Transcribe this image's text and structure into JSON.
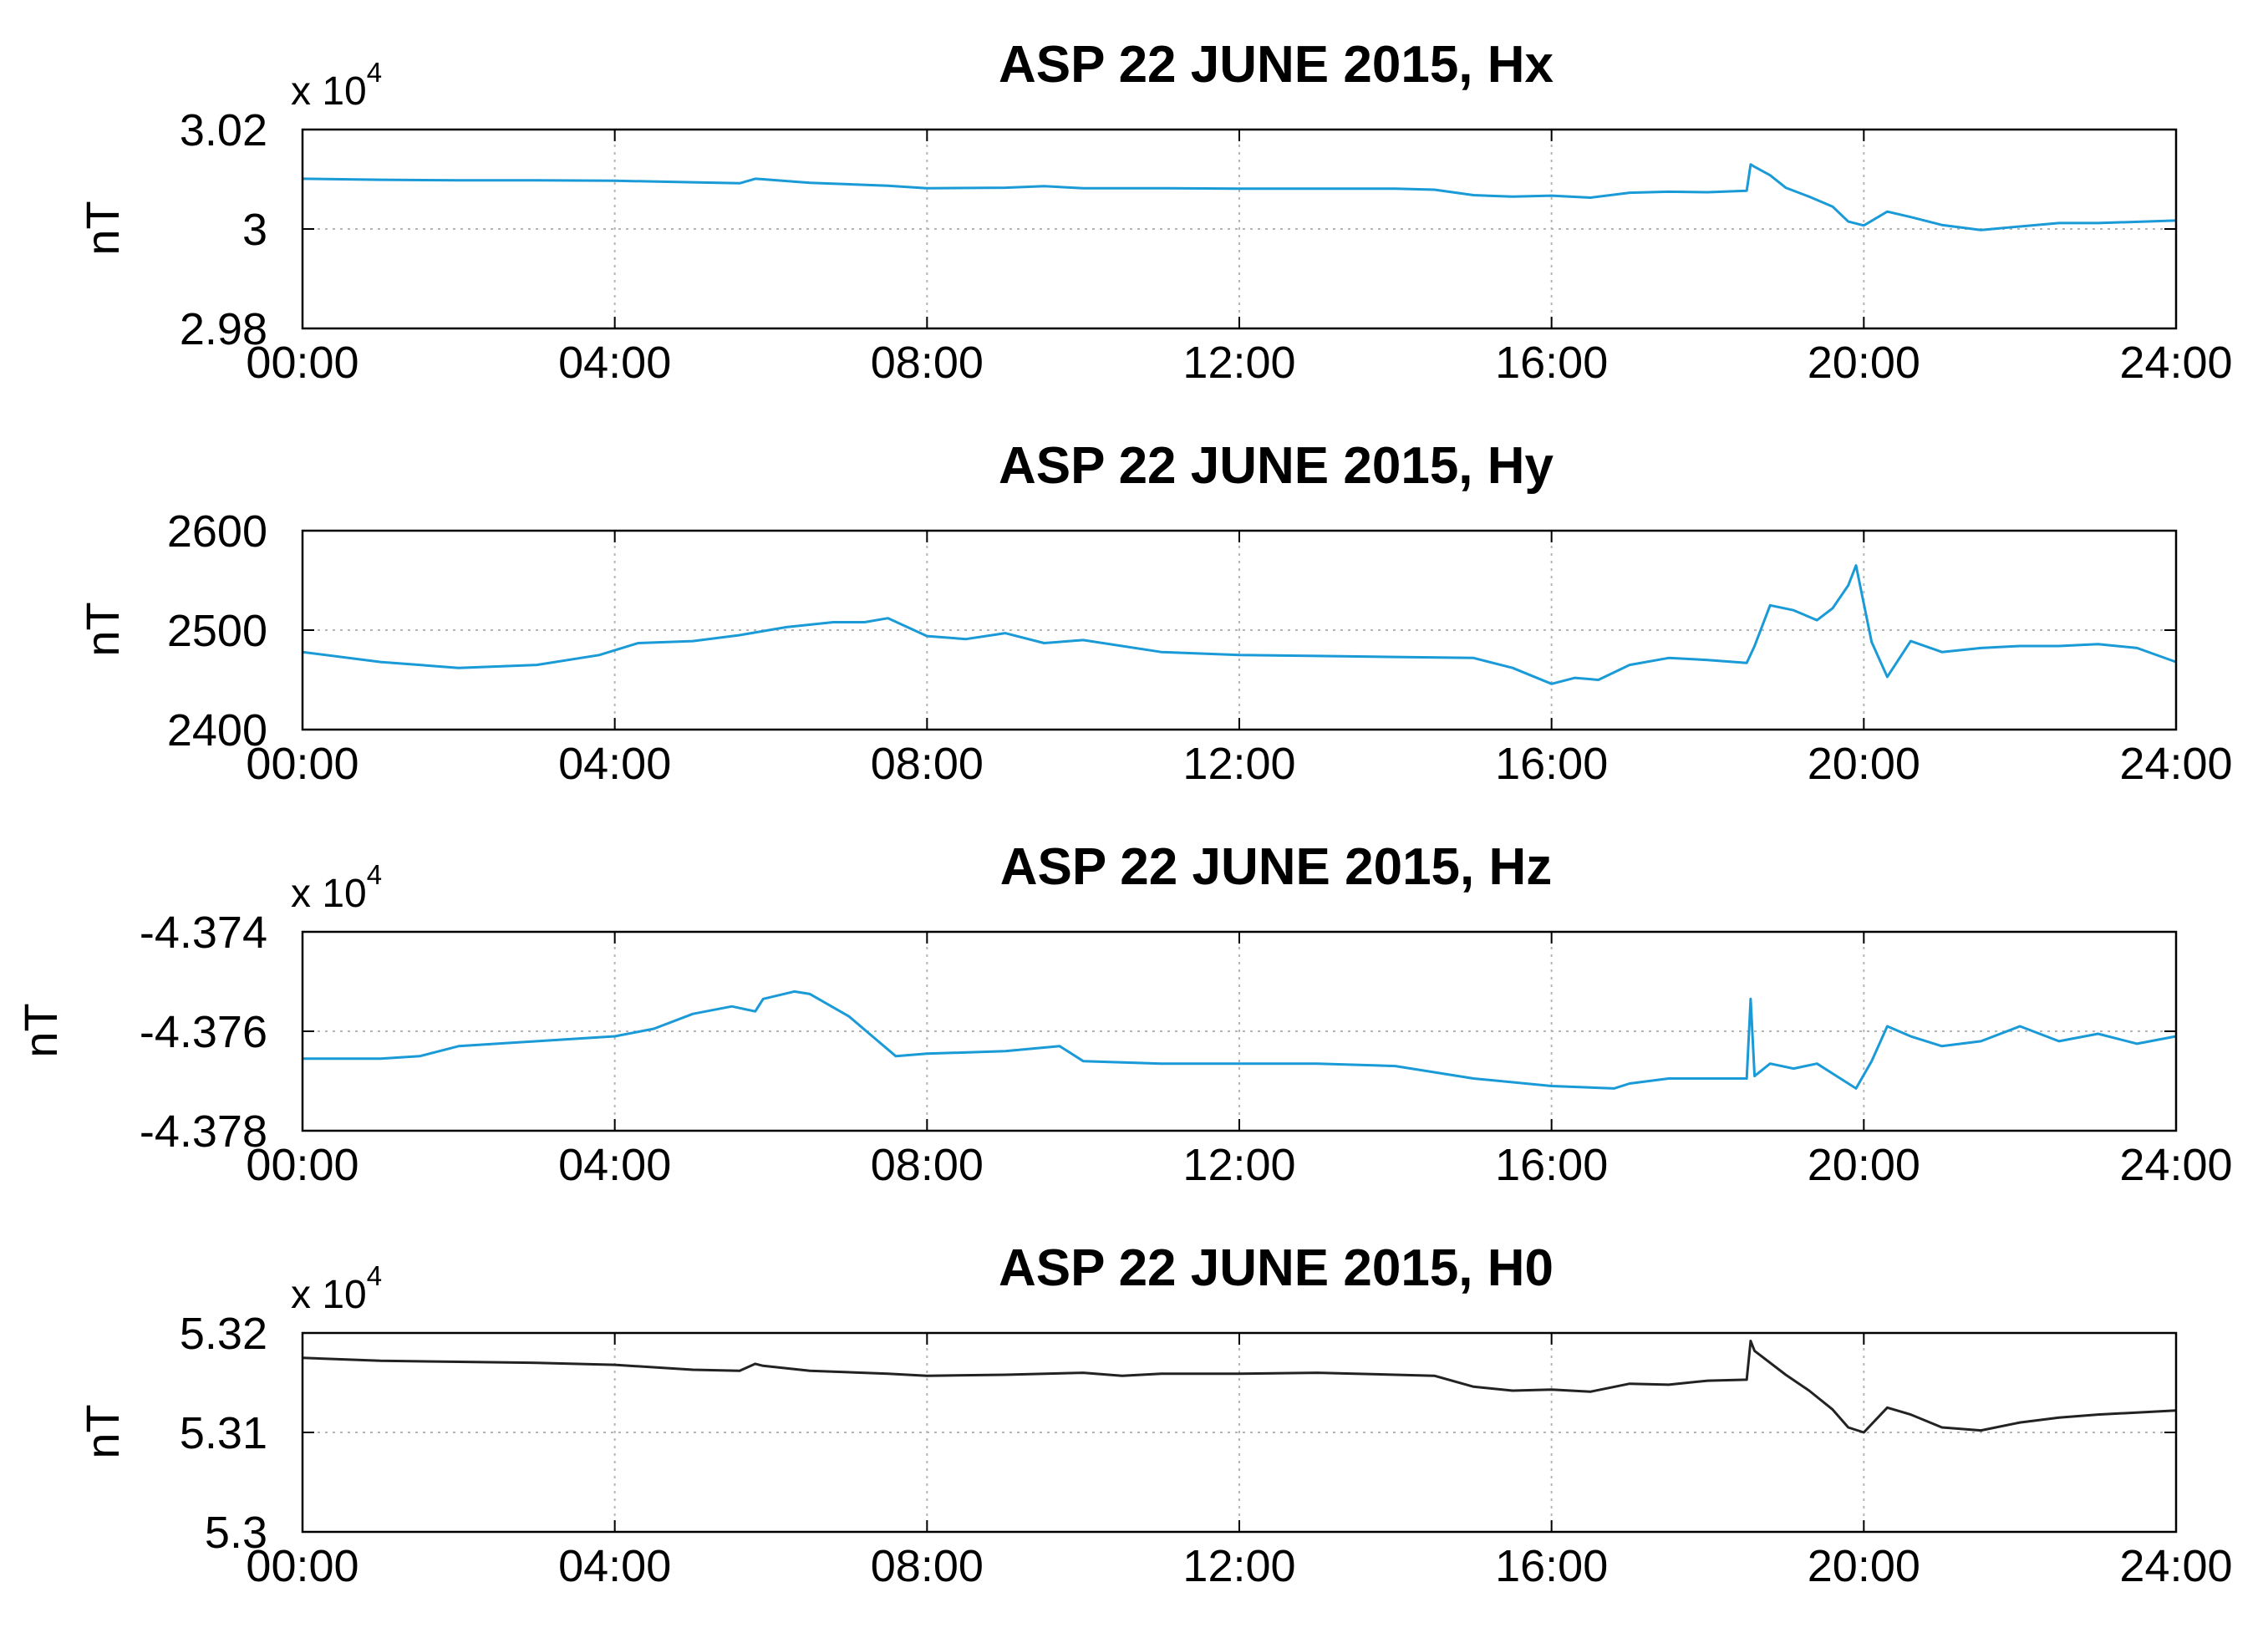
{
  "chart_data": [
    {
      "type": "line",
      "title": "ASP 22 JUNE 2015, Hx",
      "ylabel": "nT",
      "xlabel": "",
      "y_multiplier": "x 10",
      "y_multiplier_exponent": "4",
      "xlim": [
        0,
        24
      ],
      "x_tick_labels": [
        "00:00",
        "04:00",
        "08:00",
        "12:00",
        "16:00",
        "20:00",
        "24:00"
      ],
      "ylim": [
        2.98,
        3.02
      ],
      "y_ticks": [
        2.98,
        3.0,
        3.02
      ],
      "y_tick_labels": [
        "2.98",
        "3",
        "3.02"
      ],
      "grid": true,
      "color": "#1a9ad6",
      "series": [
        {
          "x": [
            0,
            1,
            2,
            3,
            4,
            5,
            5.6,
            5.8,
            5.9,
            6.5,
            7.5,
            8,
            9,
            9.5,
            10,
            11,
            12,
            13,
            14,
            14.5,
            15,
            15.5,
            16,
            16.5,
            17,
            17.5,
            18,
            18.5,
            18.55,
            18.6,
            18.8,
            19,
            19.3,
            19.6,
            19.8,
            20,
            20.3,
            20.6,
            21,
            21.5,
            22,
            22.5,
            23,
            24
          ],
          "y": [
            3.0101,
            3.0099,
            3.0098,
            3.0098,
            3.0097,
            3.0094,
            3.0092,
            3.0101,
            3.01,
            3.0093,
            3.0087,
            3.0082,
            3.0083,
            3.0086,
            3.0082,
            3.0082,
            3.0081,
            3.0081,
            3.0081,
            3.0079,
            3.0068,
            3.0065,
            3.0067,
            3.0063,
            3.0073,
            3.0075,
            3.0074,
            3.0077,
            3.013,
            3.0125,
            3.0108,
            3.0083,
            3.0065,
            3.0045,
            3.0015,
            3.0007,
            3.0035,
            3.0024,
            3.0008,
            2.9998,
            3.0005,
            3.0012,
            3.0012,
            3.0017
          ]
        }
      ]
    },
    {
      "type": "line",
      "title": "ASP 22 JUNE 2015, Hy",
      "ylabel": "nT",
      "xlabel": "",
      "xlim": [
        0,
        24
      ],
      "x_tick_labels": [
        "00:00",
        "04:00",
        "08:00",
        "12:00",
        "16:00",
        "20:00",
        "24:00"
      ],
      "ylim": [
        2400,
        2600
      ],
      "y_ticks": [
        2400,
        2500,
        2600
      ],
      "y_tick_labels": [
        "2400",
        "2500",
        "2600"
      ],
      "grid": true,
      "color": "#1a9ad6",
      "series": [
        {
          "x": [
            0,
            1,
            2,
            3,
            3.8,
            4.3,
            5,
            5.6,
            6.2,
            6.8,
            7.2,
            7.5,
            8,
            8.5,
            9,
            9.5,
            10,
            11,
            12,
            13,
            14,
            15,
            15.5,
            16,
            16.3,
            16.6,
            17,
            17.5,
            18,
            18.5,
            18.6,
            18.8,
            19.1,
            19.4,
            19.6,
            19.8,
            19.9,
            20.1,
            20.3,
            20.6,
            21,
            21.5,
            22,
            22.5,
            23,
            23.5,
            24
          ],
          "y": [
            2478,
            2468,
            2462,
            2465,
            2475,
            2487,
            2489,
            2495,
            2503,
            2508,
            2508,
            2512,
            2494,
            2491,
            2497,
            2487,
            2490,
            2478,
            2475,
            2474,
            2473,
            2472,
            2462,
            2446,
            2452,
            2450,
            2465,
            2472,
            2470,
            2467,
            2484,
            2525,
            2520,
            2510,
            2522,
            2545,
            2565,
            2488,
            2453,
            2489,
            2478,
            2482,
            2484,
            2484,
            2486,
            2482,
            2468
          ]
        }
      ]
    },
    {
      "type": "line",
      "title": "ASP 22 JUNE 2015, Hz",
      "ylabel": "nT",
      "xlabel": "",
      "y_multiplier": "x 10",
      "y_multiplier_exponent": "4",
      "xlim": [
        0,
        24
      ],
      "x_tick_labels": [
        "00:00",
        "04:00",
        "08:00",
        "12:00",
        "16:00",
        "20:00",
        "24:00"
      ],
      "ylim": [
        -4.378,
        -4.374
      ],
      "y_ticks": [
        -4.378,
        -4.376,
        -4.374
      ],
      "y_tick_labels": [
        "-4.378",
        "-4.376",
        "-4.374"
      ],
      "grid": true,
      "color": "#1a9ad6",
      "series": [
        {
          "x": [
            0,
            1,
            1.5,
            2,
            3,
            4,
            4.5,
            5,
            5.5,
            5.8,
            5.9,
            6.3,
            6.5,
            7,
            7.3,
            7.6,
            8,
            9,
            9.7,
            10,
            11,
            12,
            13,
            14,
            15,
            16,
            16.8,
            17,
            17.5,
            18,
            18.5,
            18.55,
            18.6,
            18.8,
            19.1,
            19.4,
            19.7,
            19.9,
            20.1,
            20.3,
            20.6,
            21,
            21.5,
            22,
            22.5,
            23,
            23.5,
            24
          ],
          "y": [
            -4.37655,
            -4.37655,
            -4.3765,
            -4.3763,
            -4.3762,
            -4.3761,
            -4.37595,
            -4.37565,
            -4.3755,
            -4.3756,
            -4.37535,
            -4.3752,
            -4.37525,
            -4.3757,
            -4.3761,
            -4.3765,
            -4.37645,
            -4.3764,
            -4.3763,
            -4.3766,
            -4.37665,
            -4.37665,
            -4.37665,
            -4.3767,
            -4.37695,
            -4.3771,
            -4.37715,
            -4.37705,
            -4.37695,
            -4.37695,
            -4.37695,
            -4.37535,
            -4.3769,
            -4.37665,
            -4.37675,
            -4.37665,
            -4.37695,
            -4.37715,
            -4.3766,
            -4.3759,
            -4.3761,
            -4.3763,
            -4.3762,
            -4.3759,
            -4.3762,
            -4.37605,
            -4.37625,
            -4.3761
          ]
        }
      ]
    },
    {
      "type": "line",
      "title": "ASP 22 JUNE 2015, H0",
      "ylabel": "nT",
      "xlabel": "",
      "y_multiplier": "x 10",
      "y_multiplier_exponent": "4",
      "xlim": [
        0,
        24
      ],
      "x_tick_labels": [
        "00:00",
        "04:00",
        "08:00",
        "12:00",
        "16:00",
        "20:00",
        "24:00"
      ],
      "ylim": [
        5.3,
        5.32
      ],
      "y_ticks": [
        5.3,
        5.31,
        5.32
      ],
      "y_tick_labels": [
        "5.3",
        "5.31",
        "5.32"
      ],
      "grid": true,
      "color": "#222222",
      "series": [
        {
          "x": [
            0,
            1,
            2,
            3,
            4,
            5,
            5.6,
            5.8,
            5.9,
            6.5,
            7.5,
            8,
            9,
            10,
            10.5,
            11,
            12,
            13,
            14,
            14.5,
            15,
            15.5,
            16,
            16.5,
            17,
            17.5,
            18,
            18.5,
            18.55,
            18.6,
            19,
            19.3,
            19.6,
            19.8,
            20,
            20.3,
            20.6,
            21,
            21.5,
            22,
            22.5,
            23,
            24
          ],
          "y": [
            5.3175,
            5.3172,
            5.3171,
            5.317,
            5.3168,
            5.3163,
            5.3162,
            5.3169,
            5.3167,
            5.3162,
            5.3159,
            5.3157,
            5.3158,
            5.316,
            5.3157,
            5.3159,
            5.3159,
            5.316,
            5.3158,
            5.3157,
            5.3146,
            5.3142,
            5.3143,
            5.3141,
            5.3149,
            5.3148,
            5.3152,
            5.3153,
            5.3192,
            5.3182,
            5.3158,
            5.3142,
            5.3123,
            5.3105,
            5.31,
            5.3125,
            5.3118,
            5.3105,
            5.3102,
            5.311,
            5.3115,
            5.3118,
            5.3122
          ]
        }
      ]
    }
  ]
}
